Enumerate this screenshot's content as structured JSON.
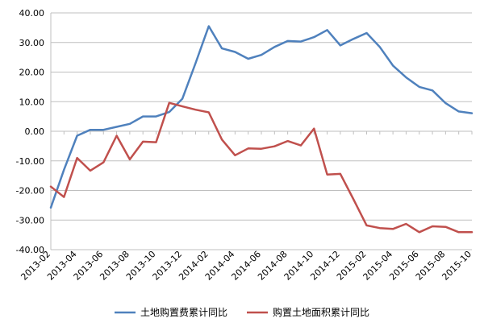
{
  "chart_data": {
    "type": "line",
    "title": "",
    "xlabel": "",
    "ylabel": "",
    "ylim": [
      -40,
      40
    ],
    "y_ticks": [
      "-40.00",
      "-30.00",
      "-20.00",
      "-10.00",
      "0.00",
      "10.00",
      "20.00",
      "30.00",
      "40.00"
    ],
    "grid": "horizontal",
    "legend_position": "bottom",
    "x": [
      "2013-02",
      "2013-03",
      "2013-04",
      "2013-05",
      "2013-06",
      "2013-07",
      "2013-08",
      "2013-09",
      "2013-10",
      "2013-11",
      "2013-12",
      "2014-01",
      "2014-02",
      "2014-03",
      "2014-04",
      "2014-05",
      "2014-06",
      "2014-07",
      "2014-08",
      "2014-09",
      "2014-10",
      "2014-11",
      "2014-12",
      "2015-01",
      "2015-02",
      "2015-03",
      "2015-04",
      "2015-05",
      "2015-06",
      "2015-07",
      "2015-08",
      "2015-09",
      "2015-10"
    ],
    "x_tick_labels": [
      "2013-02",
      "2013-04",
      "2013-06",
      "2013-08",
      "2013-10",
      "2013-12",
      "2014-02",
      "2014-04",
      "2014-06",
      "2014-08",
      "2014-10",
      "2014-12",
      "2015-02",
      "2015-04",
      "2015-06",
      "2015-08",
      "2015-10"
    ],
    "series": [
      {
        "name": "土地购置费累计同比",
        "color": "#4f81bd",
        "values": [
          -25.8,
          -13.0,
          -1.5,
          0.5,
          0.5,
          1.5,
          2.5,
          5.0,
          5.0,
          6.5,
          11.0,
          23.0,
          35.5,
          28.0,
          26.8,
          24.5,
          25.8,
          28.5,
          30.5,
          30.3,
          31.8,
          34.2,
          29.0,
          31.2,
          33.2,
          28.5,
          22.2,
          18.2,
          15.0,
          13.8,
          9.5,
          6.7,
          6.1
        ]
      },
      {
        "name": "购置土地面积累计同比",
        "color": "#c0504d",
        "values": [
          -18.7,
          -22.2,
          -9.0,
          -13.3,
          -10.5,
          -1.5,
          -9.5,
          -3.5,
          -3.7,
          9.6,
          8.4,
          7.3,
          6.4,
          -2.8,
          -8.1,
          -5.8,
          -5.9,
          -5.1,
          -3.3,
          -4.8,
          0.9,
          -14.6,
          -14.4,
          -23.0,
          -31.8,
          -32.7,
          -33.0,
          -31.3,
          -34.1,
          -32.1,
          -32.3,
          -34.1,
          -34.1
        ]
      }
    ]
  }
}
